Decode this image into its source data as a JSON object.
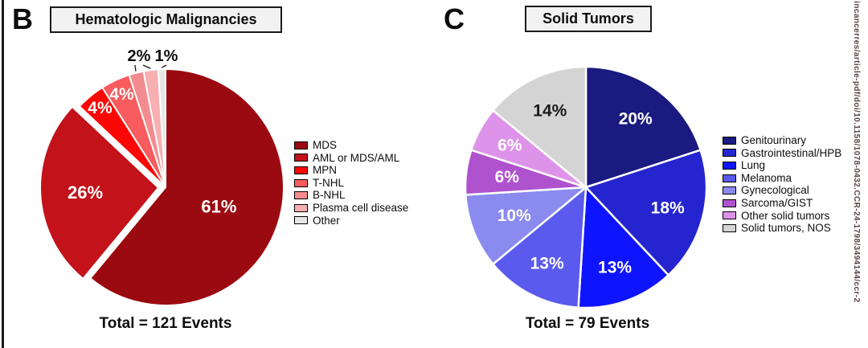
{
  "figure": {
    "side_text": "lincancerres/article-pdf/doi/10.1158/1078-0432.CCR-24-1798/3494144/ccr-2"
  },
  "chart_data": [
    {
      "type": "pie",
      "panel_letter": "B",
      "title": "Hematologic Malignancies",
      "total_label": "Total = 121 Events",
      "total_events": 121,
      "start_angle_deg": 0,
      "direction": "clockwise",
      "legend_position": "right",
      "slices": [
        {
          "label": "MDS",
          "value": 61,
          "pct_label": "61%",
          "color": "#9B0A10",
          "label_pos": "inside",
          "label_r": 0.48,
          "label_color": "#ffffff",
          "font_size": 22
        },
        {
          "label": "AML or MDS/AML",
          "value": 26,
          "pct_label": "26%",
          "color": "#C3121A",
          "label_pos": "inside",
          "label_r": 0.62,
          "label_color": "#ffffff",
          "font_size": 22,
          "explode": 9
        },
        {
          "label": "MPN",
          "value": 4,
          "pct_label": "4%",
          "color": "#FB0806",
          "label_pos": "inside",
          "label_r": 0.87,
          "label_color": "#ffffff",
          "font_size": 21
        },
        {
          "label": "T-NHL",
          "value": 4,
          "pct_label": "4%",
          "color": "#F85C5E",
          "label_pos": "inside",
          "label_r": 0.87,
          "label_color": "#ffffff",
          "font_size": 21
        },
        {
          "label": "B-NHL",
          "value": 2,
          "pct_label": "2%",
          "color": "#F48C8F",
          "label_pos": "outside"
        },
        {
          "label": "Plasma cell disease",
          "value": 2,
          "pct_label": "2%",
          "color": "#F7AFB2",
          "label_pos": "outside"
        },
        {
          "label": "Other",
          "value": 1,
          "pct_label": "1%",
          "color": "#E6E6E6",
          "label_pos": "outside"
        }
      ],
      "outside_labels": [
        {
          "text": "2%",
          "slices": [
            4,
            5
          ]
        },
        {
          "text": "1%",
          "slices": [
            6
          ]
        }
      ]
    },
    {
      "type": "pie",
      "panel_letter": "C",
      "title": "Solid Tumors",
      "total_label": "Total = 79 Events",
      "total_events": 79,
      "start_angle_deg": 0,
      "direction": "clockwise",
      "legend_position": "right",
      "slices": [
        {
          "label": "Genitourinary",
          "value": 20,
          "pct_label": "20%",
          "color": "#1A1A80",
          "label_pos": "inside",
          "label_r": 0.7,
          "label_color": "#ffffff",
          "font_size": 21
        },
        {
          "label": "Gastrointestinal/HPB",
          "value": 18,
          "pct_label": "18%",
          "color": "#2525CF",
          "label_pos": "inside",
          "label_r": 0.7,
          "label_color": "#ffffff",
          "font_size": 21
        },
        {
          "label": "Lung",
          "value": 13,
          "pct_label": "13%",
          "color": "#0F14FF",
          "label_pos": "inside",
          "label_r": 0.71,
          "label_color": "#ffffff",
          "font_size": 21
        },
        {
          "label": "Melanoma",
          "value": 13,
          "pct_label": "13%",
          "color": "#5A5AEE",
          "label_pos": "inside",
          "label_r": 0.71,
          "label_color": "#ffffff",
          "font_size": 21
        },
        {
          "label": "Gynecological",
          "value": 10,
          "pct_label": "10%",
          "color": "#8A8AEF",
          "label_pos": "inside",
          "label_r": 0.64,
          "label_color": "#ffffff",
          "font_size": 21
        },
        {
          "label": "Sarcoma/GIST",
          "value": 6,
          "pct_label": "6%",
          "color": "#AF52CE",
          "label_pos": "inside",
          "label_r": 0.66,
          "label_color": "#ffffff",
          "font_size": 21
        },
        {
          "label": "Other solid tumors",
          "value": 6,
          "pct_label": "6%",
          "color": "#DE93EA",
          "label_pos": "inside",
          "label_r": 0.72,
          "label_color": "#ffffff",
          "font_size": 21
        },
        {
          "label": "Solid tumors, NOS",
          "value": 14,
          "pct_label": "14%",
          "color": "#D4D4D4",
          "label_pos": "inside",
          "label_r": 0.7,
          "label_color": "#1a1a1a",
          "font_size": 21
        }
      ],
      "outside_labels": []
    }
  ]
}
